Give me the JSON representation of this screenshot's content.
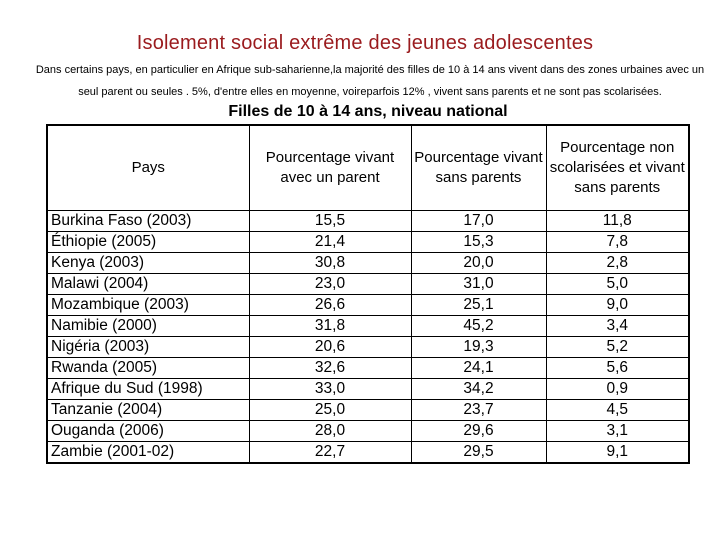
{
  "slide": {
    "title": "Isolement social extrême des jeunes adolescentes",
    "intro": {
      "line1": "Dans certains pays, en particulier en Afrique sub-saharienne,la majorité des filles de 10 à 14 ans vivent dans des zones urbaines avec un",
      "line2": "seul parent ou seules . 5%, d'entre elles en moyenne, voireparfois 12% , vivent sans parents et ne sont pas scolarisées."
    },
    "table_caption": "Filles de 10 à 14 ans, niveau national"
  },
  "colors": {
    "title_red": "#9a1b1e",
    "text": "#000000",
    "border": "#000000",
    "background": "#ffffff"
  },
  "table": {
    "headers": [
      "Pays",
      "Pourcentage vivant avec un parent",
      "Pourcentage vivant sans parents",
      "Pourcentage non scolarisées et vivant sans parents"
    ],
    "rows": [
      [
        "Burkina Faso (2003)",
        "15,5",
        "17,0",
        "11,8"
      ],
      [
        "Éthiopie (2005)",
        "21,4",
        "15,3",
        "7,8"
      ],
      [
        "Kenya (2003)",
        "30,8",
        "20,0",
        "2,8"
      ],
      [
        "Malawi (2004)",
        "23,0",
        "31,0",
        "5,0"
      ],
      [
        "Mozambique (2003)",
        "26,6",
        "25,1",
        "9,0"
      ],
      [
        "Namibie (2000)",
        "31,8",
        "45,2",
        "3,4"
      ],
      [
        "Nigéria (2003)",
        "20,6",
        "19,3",
        "5,2"
      ],
      [
        "Rwanda (2005)",
        "32,6",
        "24,1",
        "5,6"
      ],
      [
        "Afrique du Sud (1998)",
        "33,0",
        "34,2",
        "0,9"
      ],
      [
        "Tanzanie (2004)",
        "25,0",
        "23,7",
        "4,5"
      ],
      [
        "Ouganda (2006)",
        "28,0",
        "29,6",
        "3,1"
      ],
      [
        "Zambie (2001-02)",
        "22,7",
        "29,5",
        "9,1"
      ]
    ]
  }
}
